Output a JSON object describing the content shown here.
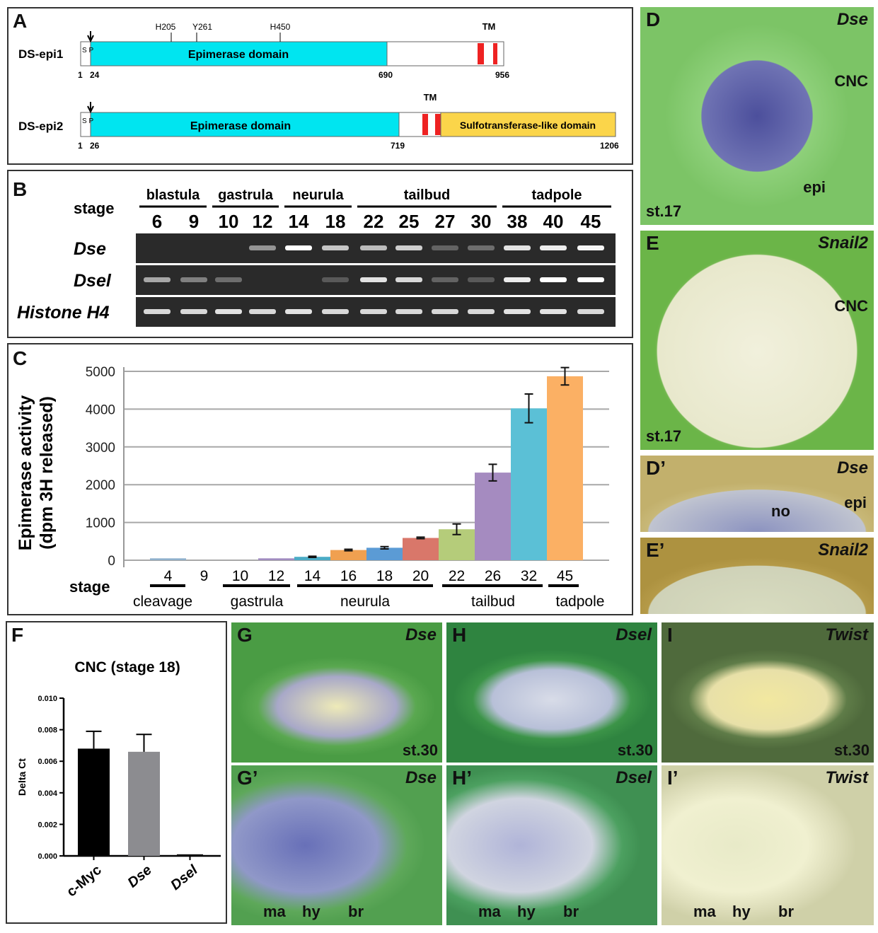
{
  "panel_a": {
    "label": "A",
    "proteins": [
      {
        "name": "DS-epi1",
        "sp": "S P",
        "domain": "Epimerase domain",
        "positions": [
          "1",
          "24",
          "690",
          "956"
        ],
        "sites": [
          "H205",
          "Y261",
          "H450"
        ],
        "tm": "TM"
      },
      {
        "name": "DS-epi2",
        "sp": "S P",
        "domain": "Epimerase domain",
        "domain2": "Sulfotransferase-like domain",
        "positions": [
          "1",
          "26",
          "719",
          "1206"
        ],
        "tm": "TM"
      }
    ],
    "colors": {
      "epimerase": "#00e5f0",
      "tm": "#ee2222",
      "sulfo": "#fbd54a"
    }
  },
  "panel_b": {
    "label": "B",
    "stage_label": "stage",
    "groups": [
      "blastula",
      "gastrula",
      "neurula",
      "tailbud",
      "tadpole"
    ],
    "stages": [
      "6",
      "9",
      "10",
      "12",
      "14",
      "18",
      "22",
      "25",
      "27",
      "30",
      "38",
      "40",
      "45"
    ],
    "rows": [
      {
        "name": "Dse",
        "intensity": [
          0,
          0,
          0,
          0.45,
          1,
          0.7,
          0.65,
          0.75,
          0.2,
          0.25,
          0.85,
          0.9,
          0.95
        ]
      },
      {
        "name": "Dsel",
        "intensity": [
          0.55,
          0.35,
          0.25,
          0,
          0,
          0.15,
          0.85,
          0.8,
          0.2,
          0.15,
          0.9,
          1,
          1
        ]
      },
      {
        "name": "Histone H4",
        "intensity": [
          0.8,
          0.8,
          0.85,
          0.8,
          0.85,
          0.8,
          0.8,
          0.8,
          0.8,
          0.8,
          0.85,
          0.85,
          0.8
        ]
      }
    ]
  },
  "chart_data": [
    {
      "type": "bar",
      "panel": "C",
      "ylabel": "Epimerase activity\n(dpm 3H released)",
      "xlabel": "stage",
      "ylim": [
        0,
        5000
      ],
      "yticks": [
        "0",
        "1000",
        "2000",
        "3000",
        "4000",
        "5000"
      ],
      "grid": true,
      "categories": [
        "4",
        "9",
        "10",
        "12",
        "14",
        "16",
        "18",
        "20",
        "22",
        "26",
        "32",
        "45"
      ],
      "values": [
        50,
        0,
        0,
        50,
        90,
        270,
        330,
        590,
        820,
        2320,
        4020,
        4870
      ],
      "errors": [
        0,
        0,
        0,
        0,
        15,
        20,
        30,
        20,
        140,
        220,
        380,
        230
      ],
      "colors": [
        "#8fb0cc",
        "#8fb0cc",
        "#8fb0cc",
        "#a08cc0",
        "#4bacc6",
        "#f0a050",
        "#5b9bd5",
        "#d9776a",
        "#b5cc7a",
        "#a58bc0",
        "#5bc0d6",
        "#fbb064"
      ],
      "groups": [
        "cleavage",
        "gastrula",
        "neurula",
        "tailbud",
        "tadpole"
      ]
    },
    {
      "type": "bar",
      "panel": "F",
      "title": "CNC (stage 18)",
      "ylabel": "Delta Ct",
      "ylim": [
        0,
        0.01
      ],
      "yticks": [
        "0.000",
        "0.002",
        "0.004",
        "0.006",
        "0.008",
        "0.010"
      ],
      "categories": [
        "c-Myc",
        "Dse",
        "Dsel"
      ],
      "values": [
        0.0068,
        0.0066,
        0.0001
      ],
      "errors": [
        0.0011,
        0.0011,
        0
      ],
      "colors": [
        "#000000",
        "#8c8c90",
        "#000000"
      ]
    }
  ],
  "photos": {
    "D": {
      "label": "D",
      "title": "Dse",
      "stage": "st.17",
      "ann": [
        "CNC",
        "epi"
      ]
    },
    "E": {
      "label": "E",
      "title": "Snail2",
      "stage": "st.17",
      "ann": [
        "CNC"
      ]
    },
    "Dp": {
      "label": "D’",
      "title": "Dse",
      "ann": [
        "no",
        "epi"
      ]
    },
    "Ep": {
      "label": "E’",
      "title": "Snail2"
    },
    "G": {
      "label": "G",
      "title": "Dse",
      "stage": "st.30"
    },
    "H": {
      "label": "H",
      "title": "Dsel",
      "stage": "st.30"
    },
    "I": {
      "label": "I",
      "title": "Twist",
      "stage": "st.30"
    },
    "Gp": {
      "label": "G’",
      "title": "Dse",
      "ann": [
        "ma",
        "hy",
        "br"
      ]
    },
    "Hp": {
      "label": "H’",
      "title": "Dsel",
      "ann": [
        "ma",
        "hy",
        "br"
      ]
    },
    "Ip": {
      "label": "I’",
      "title": "Twist",
      "ann": [
        "ma",
        "hy",
        "br"
      ]
    }
  }
}
